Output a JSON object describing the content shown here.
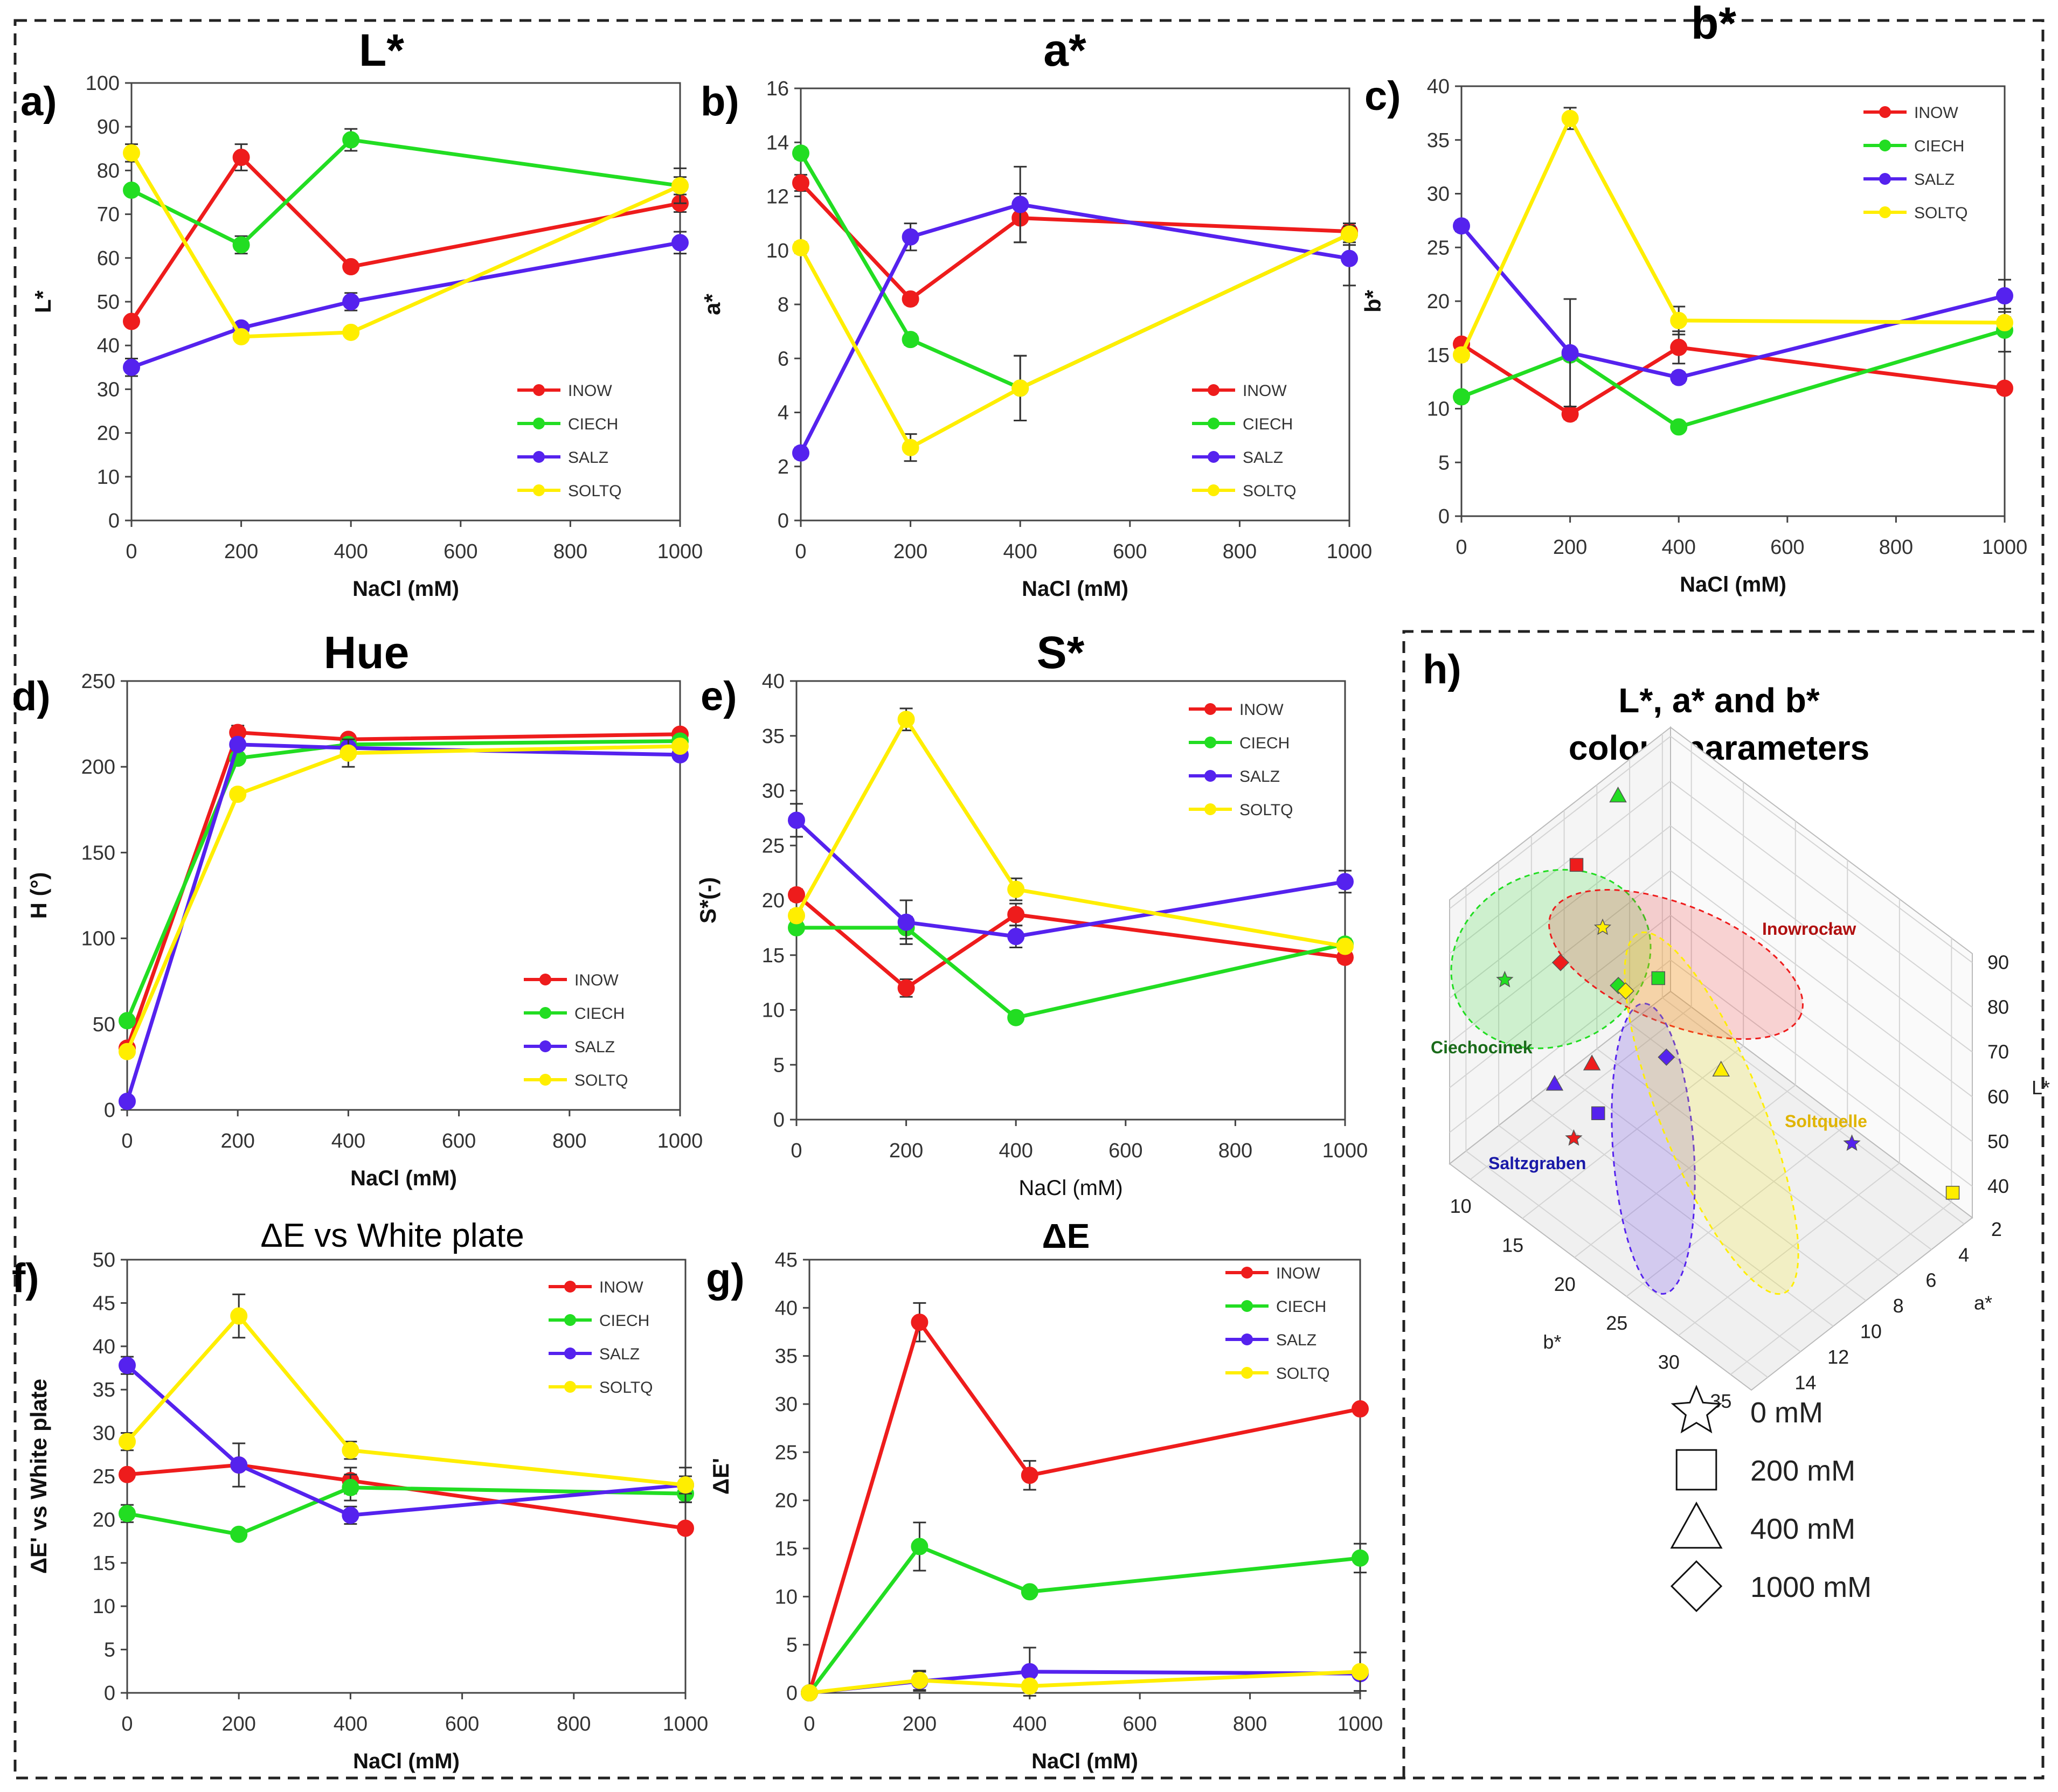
{
  "colors": {
    "INOW": "#ee1c1c",
    "CIECH": "#22dd22",
    "SALZ": "#5522ee",
    "SOLTQ": "#ffee00"
  },
  "chart_data": [
    {
      "id": "a",
      "panel_label": "a)",
      "type": "line",
      "title": "L*",
      "xlabel": "NaCl (mM)",
      "ylabel": "L*",
      "xlim": [
        0,
        1000
      ],
      "ylim": [
        0,
        100
      ],
      "xticks": [
        0,
        200,
        400,
        600,
        800,
        1000
      ],
      "yticks": [
        0,
        10,
        20,
        30,
        40,
        50,
        60,
        70,
        80,
        90,
        100
      ],
      "x": [
        0,
        200,
        400,
        1000
      ],
      "legend_position": "bottom-right",
      "series": [
        {
          "name": "INOW",
          "values": [
            45.5,
            83,
            58,
            72.5
          ],
          "errors": [
            0.5,
            3,
            1,
            2
          ]
        },
        {
          "name": "CIECH",
          "values": [
            75.5,
            63,
            87,
            76.5
          ],
          "errors": [
            1,
            2,
            2.5,
            2
          ]
        },
        {
          "name": "SALZ",
          "values": [
            35,
            44,
            50,
            63.5
          ],
          "errors": [
            2,
            1,
            2,
            2.5
          ]
        },
        {
          "name": "SOLTQ",
          "values": [
            84,
            42,
            43,
            76.5
          ],
          "errors": [
            2,
            1,
            1,
            4
          ]
        }
      ]
    },
    {
      "id": "b",
      "panel_label": "b)",
      "type": "line",
      "title": "a*",
      "xlabel": "NaCl (mM)",
      "ylabel": "a*",
      "xlim": [
        0,
        1000
      ],
      "ylim": [
        0,
        16
      ],
      "xticks": [
        0,
        200,
        400,
        600,
        800,
        1000
      ],
      "yticks": [
        0,
        2,
        4,
        6,
        8,
        10,
        12,
        14,
        16
      ],
      "x": [
        0,
        200,
        400,
        1000
      ],
      "legend_position": "bottom-right",
      "series": [
        {
          "name": "INOW",
          "values": [
            12.5,
            8.2,
            11.2,
            10.7
          ],
          "errors": [
            0.3,
            0.2,
            0.9,
            0.3
          ]
        },
        {
          "name": "CIECH",
          "values": [
            13.6,
            6.7,
            4.9,
            10.6
          ],
          "errors": [
            0.2,
            0.2,
            1.2,
            0.3
          ]
        },
        {
          "name": "SALZ",
          "values": [
            2.5,
            10.5,
            11.7,
            9.7
          ],
          "errors": [
            0.2,
            0.5,
            1.4,
            1.0
          ]
        },
        {
          "name": "SOLTQ",
          "values": [
            10.1,
            2.7,
            4.9,
            10.6
          ],
          "errors": [
            0.2,
            0.5,
            1.2,
            0.4
          ]
        }
      ]
    },
    {
      "id": "c",
      "panel_label": "c)",
      "type": "line",
      "title": "b*",
      "xlabel": "NaCl (mM)",
      "ylabel": "b*",
      "xlim": [
        0,
        1000
      ],
      "ylim": [
        0,
        40
      ],
      "xticks": [
        0,
        200,
        400,
        600,
        800,
        1000
      ],
      "yticks": [
        0,
        5,
        10,
        15,
        20,
        25,
        30,
        35,
        40
      ],
      "x": [
        0,
        200,
        400,
        1000
      ],
      "legend_position": "top-right",
      "series": [
        {
          "name": "INOW",
          "values": [
            16,
            9.5,
            15.7,
            11.9
          ],
          "errors": [
            0.5,
            0.5,
            1.5,
            0.3
          ]
        },
        {
          "name": "CIECH",
          "values": [
            11.1,
            15,
            8.3,
            17.3
          ],
          "errors": [
            0.5,
            0.5,
            0.3,
            2
          ]
        },
        {
          "name": "SALZ",
          "values": [
            27,
            15.2,
            12.9,
            20.5
          ],
          "errors": [
            0.5,
            5,
            0.5,
            1.5
          ]
        },
        {
          "name": "SOLTQ",
          "values": [
            15,
            37,
            18.2,
            18
          ],
          "errors": [
            0.5,
            1,
            1.3,
            0.5
          ]
        }
      ]
    },
    {
      "id": "d",
      "panel_label": "d)",
      "type": "line",
      "title": "Hue",
      "xlabel": "NaCl (mM)",
      "ylabel": "H (°)",
      "xlim": [
        0,
        1000
      ],
      "ylim": [
        0,
        250
      ],
      "xticks": [
        0,
        200,
        400,
        600,
        800,
        1000
      ],
      "yticks": [
        0,
        50,
        100,
        150,
        200,
        250
      ],
      "x": [
        0,
        200,
        400,
        1000
      ],
      "legend_position": "bottom-right",
      "series": [
        {
          "name": "INOW",
          "values": [
            36,
            220,
            216,
            219
          ],
          "errors": [
            3,
            4,
            3,
            3
          ]
        },
        {
          "name": "CIECH",
          "values": [
            52,
            205,
            213,
            215
          ],
          "errors": [
            3,
            3,
            3,
            3
          ]
        },
        {
          "name": "SALZ",
          "values": [
            5,
            213,
            211,
            207
          ],
          "errors": [
            2,
            3,
            3,
            3
          ]
        },
        {
          "name": "SOLTQ",
          "values": [
            34,
            184,
            208,
            212
          ],
          "errors": [
            3,
            3,
            8,
            3
          ]
        }
      ]
    },
    {
      "id": "e",
      "panel_label": "e)",
      "type": "line",
      "title": "S*",
      "xlabel": "NaCl (mM)",
      "ylabel": "S*(-)",
      "xlim": [
        0,
        1000
      ],
      "ylim": [
        0,
        40
      ],
      "xticks": [
        0,
        200,
        400,
        600,
        800,
        1000
      ],
      "yticks": [
        0,
        5,
        10,
        15,
        20,
        25,
        30,
        35,
        40
      ],
      "x": [
        0,
        200,
        400,
        1000
      ],
      "legend_position": "top-right",
      "series": [
        {
          "name": "INOW",
          "values": [
            20.5,
            12,
            18.7,
            14.8
          ],
          "errors": [
            0.5,
            0.8,
            1,
            0.5
          ]
        },
        {
          "name": "CIECH",
          "values": [
            17.5,
            17.5,
            9.3,
            16
          ],
          "errors": [
            0.3,
            1,
            0.3,
            0.5
          ]
        },
        {
          "name": "SALZ",
          "values": [
            27.3,
            18,
            16.7,
            21.7
          ],
          "errors": [
            1.5,
            2,
            1,
            1
          ]
        },
        {
          "name": "SOLTQ",
          "values": [
            18.6,
            36.5,
            21,
            15.8
          ],
          "errors": [
            0.5,
            1,
            1,
            0.5
          ]
        }
      ]
    },
    {
      "id": "f",
      "panel_label": "f)",
      "type": "line",
      "title": "ΔE vs White plate",
      "xlabel": "NaCl (mM)",
      "ylabel": "ΔE' vs White plate",
      "xlim": [
        0,
        1000
      ],
      "ylim": [
        0,
        50
      ],
      "xticks": [
        0,
        200,
        400,
        600,
        800,
        1000
      ],
      "yticks": [
        0,
        5,
        10,
        15,
        20,
        25,
        30,
        35,
        40,
        45,
        50
      ],
      "x": [
        0,
        200,
        400,
        1000
      ],
      "legend_position": "top-right",
      "series": [
        {
          "name": "INOW",
          "values": [
            25.2,
            26.3,
            24.5,
            19
          ],
          "errors": [
            0.5,
            0.5,
            1.5,
            0.3
          ]
        },
        {
          "name": "CIECH",
          "values": [
            20.7,
            18.3,
            23.7,
            23
          ],
          "errors": [
            1,
            0.5,
            1.5,
            1
          ]
        },
        {
          "name": "SALZ",
          "values": [
            37.8,
            26.3,
            20.5,
            24
          ],
          "errors": [
            1,
            2.5,
            1,
            1
          ]
        },
        {
          "name": "SOLTQ",
          "values": [
            29,
            43.5,
            28,
            24
          ],
          "errors": [
            1,
            2.5,
            1,
            2
          ]
        }
      ]
    },
    {
      "id": "g",
      "panel_label": "g)",
      "type": "line",
      "title": "ΔE",
      "xlabel": "NaCl (mM)",
      "ylabel": "ΔE'",
      "xlim": [
        0,
        1000
      ],
      "ylim": [
        0,
        45
      ],
      "xticks": [
        0,
        200,
        400,
        600,
        800,
        1000
      ],
      "yticks": [
        0,
        5,
        10,
        15,
        20,
        25,
        30,
        35,
        40,
        45
      ],
      "x": [
        0,
        200,
        400,
        1000
      ],
      "legend_position": "top-right",
      "series": [
        {
          "name": "INOW",
          "values": [
            0,
            38.5,
            22.6,
            29.5
          ],
          "errors": [
            0,
            2,
            1.5,
            0.3
          ]
        },
        {
          "name": "CIECH",
          "values": [
            0,
            15.2,
            10.5,
            14
          ],
          "errors": [
            0,
            2.5,
            0.5,
            1.5
          ]
        },
        {
          "name": "SALZ",
          "values": [
            0,
            1.2,
            2.2,
            2
          ],
          "errors": [
            0,
            1,
            2.5,
            0.5
          ]
        },
        {
          "name": "SOLTQ",
          "values": [
            0,
            1.3,
            0.7,
            2.2
          ],
          "errors": [
            0,
            1,
            0.5,
            2
          ]
        }
      ]
    },
    {
      "id": "h",
      "panel_label": "h)",
      "type": "scatter",
      "title": [
        "L*, a* and b*",
        "colour parameters"
      ],
      "axes": {
        "L": {
          "label": "L*",
          "ticks": [
            40,
            50,
            60,
            70,
            80,
            90
          ]
        },
        "a": {
          "label": "a*",
          "ticks": [
            2,
            4,
            6,
            8,
            10,
            12,
            14
          ]
        },
        "b": {
          "label": "b*",
          "ticks": [
            10,
            15,
            20,
            25,
            30,
            35
          ]
        }
      },
      "regions": [
        {
          "name": "Inowrocław",
          "series": "INOW"
        },
        {
          "name": "Ciechocinek",
          "series": "CIECH"
        },
        {
          "name": "Saltzgraben",
          "series": "SALZ"
        },
        {
          "name": "Soltquelle",
          "series": "SOLTQ"
        }
      ],
      "shape_legend": [
        {
          "shape": "star",
          "label": "0 mM"
        },
        {
          "shape": "square",
          "label": "200 mM"
        },
        {
          "shape": "triangle",
          "label": "400 mM"
        },
        {
          "shape": "diamond",
          "label": "1000 mM"
        }
      ],
      "points": [
        {
          "series": "CIECH",
          "shape": "star",
          "L": 75.5,
          "a": 13.6,
          "b": 11.1
        },
        {
          "series": "SOLTQ",
          "shape": "square",
          "L": 42,
          "a": 2.7,
          "b": 37
        },
        {
          "series": "CIECH",
          "shape": "square",
          "L": 63,
          "a": 6.7,
          "b": 15
        },
        {
          "series": "INOW",
          "shape": "triangle",
          "L": 58,
          "a": 11.2,
          "b": 15.7
        },
        {
          "series": "SOLTQ",
          "shape": "triangle",
          "L": 43,
          "a": 4.9,
          "b": 18.2
        },
        {
          "series": "CIECH",
          "shape": "diamond",
          "L": 76.5,
          "a": 10.6,
          "b": 17.3
        },
        {
          "series": "INOW",
          "shape": "diamond",
          "L": 72.5,
          "a": 10.7,
          "b": 11.9
        },
        {
          "series": "INOW",
          "shape": "square",
          "L": 83,
          "a": 8.2,
          "b": 9.5
        },
        {
          "series": "SALZ",
          "shape": "star",
          "L": 35,
          "a": 2.5,
          "b": 27
        },
        {
          "series": "SALZ",
          "shape": "triangle",
          "L": 50,
          "a": 11.7,
          "b": 12.9
        },
        {
          "series": "INOW",
          "shape": "star",
          "L": 45.5,
          "a": 12.5,
          "b": 16
        },
        {
          "series": "SALZ",
          "shape": "square",
          "L": 44,
          "a": 10.5,
          "b": 15.2
        },
        {
          "series": "SOLTQ",
          "shape": "star",
          "L": 84,
          "a": 10.1,
          "b": 15
        },
        {
          "series": "CIECH",
          "shape": "triangle",
          "L": 87,
          "a": 4.9,
          "b": 8.3
        },
        {
          "series": "SALZ",
          "shape": "diamond",
          "L": 63.5,
          "a": 9.7,
          "b": 20.5
        },
        {
          "series": "SOLTQ",
          "shape": "diamond",
          "L": 76.5,
          "a": 10.6,
          "b": 18
        }
      ]
    }
  ]
}
